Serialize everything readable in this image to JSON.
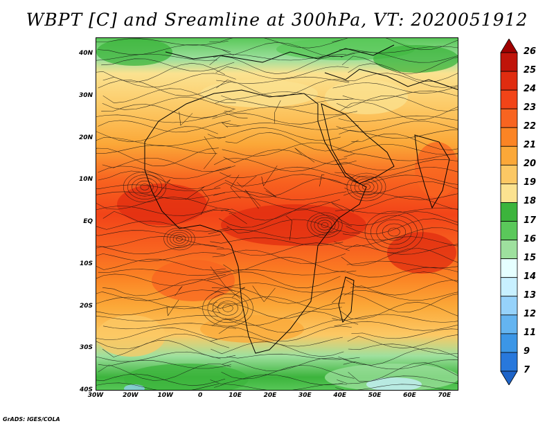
{
  "title": "WBPT [C] and Sreamline at 300hPa, VT: 2020051912",
  "credit": "GrADS: IGES/COLA",
  "map": {
    "lat_labels": [
      "40N",
      "30N",
      "20N",
      "10N",
      "EQ",
      "10S",
      "20S",
      "30S",
      "40S"
    ],
    "lon_labels": [
      "30W",
      "20W",
      "10W",
      "0",
      "10E",
      "20E",
      "30E",
      "40E",
      "50E",
      "60E",
      "70E"
    ],
    "lat_range": [
      -40,
      44
    ],
    "lon_range": [
      -30,
      74
    ]
  },
  "colorbar": {
    "labels": [
      "26",
      "25",
      "24",
      "23",
      "22",
      "21",
      "20",
      "19",
      "18",
      "17",
      "16",
      "15",
      "14",
      "13",
      "12",
      "11",
      "9",
      "7"
    ],
    "colors": [
      "#a00000",
      "#c0140a",
      "#e02c10",
      "#f24418",
      "#f86420",
      "#fb8424",
      "#fba838",
      "#fcc864",
      "#fbe290",
      "#3cb43c",
      "#5ac85a",
      "#9ee09e",
      "#e6ffff",
      "#c8f0ff",
      "#96d2fa",
      "#64b4f0",
      "#3c96e6",
      "#2878dc",
      "#1e64c8"
    ]
  },
  "chart_data": {
    "type": "heatmap",
    "title": "WBPT [C] and Sreamline at 300hPa, VT: 2020051912",
    "xlabel": "",
    "ylabel": "",
    "x_ticks": [
      "30W",
      "20W",
      "10W",
      "0",
      "10E",
      "20E",
      "30E",
      "40E",
      "50E",
      "60E",
      "70E"
    ],
    "y_ticks": [
      "40N",
      "30N",
      "20N",
      "10N",
      "EQ",
      "10S",
      "20S",
      "30S",
      "40S"
    ],
    "colorbar_levels": [
      7,
      9,
      11,
      12,
      13,
      14,
      15,
      16,
      17,
      18,
      19,
      20,
      21,
      22,
      23,
      24,
      25,
      26
    ],
    "approx_zonal_profile": [
      {
        "lat": 40,
        "wbpt": 17
      },
      {
        "lat": 35,
        "wbpt": 19
      },
      {
        "lat": 30,
        "wbpt": 20
      },
      {
        "lat": 20,
        "wbpt": 21
      },
      {
        "lat": 10,
        "wbpt": 23
      },
      {
        "lat": 0,
        "wbpt": 23.5
      },
      {
        "lat": -10,
        "wbpt": 23
      },
      {
        "lat": -20,
        "wbpt": 21
      },
      {
        "lat": -30,
        "wbpt": 19
      },
      {
        "lat": -38,
        "wbpt": 17
      }
    ]
  }
}
